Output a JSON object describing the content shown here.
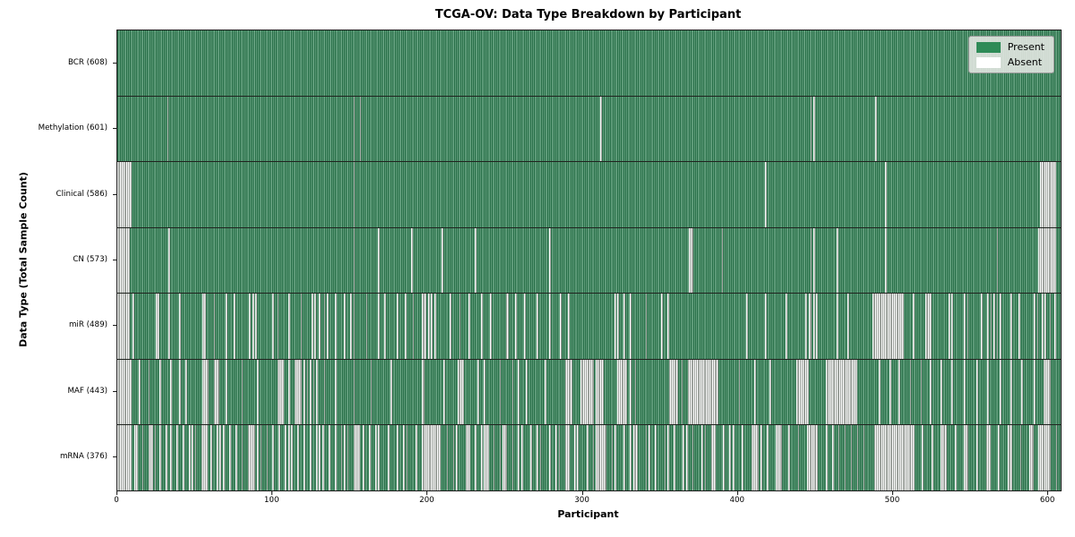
{
  "chart_data": {
    "type": "heatmap",
    "title": "TCGA-OV: Data Type Breakdown by Participant",
    "xlabel": "Participant",
    "ylabel": "Data Type (Total Sample Count)",
    "x_ticks": [
      0,
      100,
      200,
      300,
      400,
      500,
      600
    ],
    "x_range": [
      0,
      608
    ],
    "n_participants": 608,
    "grid": "row-separators",
    "legend_position": "upper-right",
    "legend": [
      {
        "label": "Present",
        "color": "#2e8b57"
      },
      {
        "label": "Absent",
        "color": "#ffffff"
      }
    ],
    "rows": [
      {
        "label": "BCR (608)",
        "present_count": 608,
        "absent_runs": []
      },
      {
        "label": "Methylation (601)",
        "present_count": 601,
        "absent_runs": [
          [
            32,
            1
          ],
          [
            152,
            1
          ],
          [
            156,
            1
          ],
          [
            311,
            1
          ],
          [
            446,
            1
          ],
          [
            448,
            1
          ],
          [
            488,
            1
          ]
        ]
      },
      {
        "label": "Clinical (586)",
        "present_count": 586,
        "absent_runs": [
          [
            0,
            9
          ],
          [
            152,
            1
          ],
          [
            417,
            1
          ],
          [
            494,
            1
          ],
          [
            594,
            10
          ]
        ]
      },
      {
        "label": "CN (573)",
        "present_count": 573,
        "absent_runs": [
          [
            0,
            8
          ],
          [
            33,
            1
          ],
          [
            152,
            1
          ],
          [
            168,
            1
          ],
          [
            189,
            1
          ],
          [
            209,
            1
          ],
          [
            230,
            1
          ],
          [
            278,
            1
          ],
          [
            368,
            3
          ],
          [
            389,
            1
          ],
          [
            446,
            1
          ],
          [
            448,
            1
          ],
          [
            463,
            1
          ],
          [
            494,
            1
          ],
          [
            566,
            1
          ],
          [
            593,
            11
          ]
        ]
      },
      {
        "label": "miR (489)",
        "present_count": 489,
        "absent_runs": [
          [
            0,
            8
          ],
          [
            10,
            1
          ],
          [
            25,
            2
          ],
          [
            33,
            1
          ],
          [
            40,
            1
          ],
          [
            55,
            2
          ],
          [
            62,
            1
          ],
          [
            70,
            1
          ],
          [
            75,
            1
          ],
          [
            85,
            1
          ],
          [
            87,
            1
          ],
          [
            89,
            1
          ],
          [
            100,
            1
          ],
          [
            103,
            1
          ],
          [
            110,
            1
          ],
          [
            118,
            1
          ],
          [
            125,
            1
          ],
          [
            127,
            1
          ],
          [
            130,
            1
          ],
          [
            133,
            1
          ],
          [
            135,
            1
          ],
          [
            140,
            1
          ],
          [
            146,
            1
          ],
          [
            150,
            1
          ],
          [
            152,
            1
          ],
          [
            160,
            1
          ],
          [
            168,
            1
          ],
          [
            172,
            1
          ],
          [
            180,
            1
          ],
          [
            185,
            1
          ],
          [
            190,
            1
          ],
          [
            196,
            3
          ],
          [
            200,
            1
          ],
          [
            202,
            1
          ],
          [
            204,
            1
          ],
          [
            214,
            1
          ],
          [
            220,
            1
          ],
          [
            226,
            1
          ],
          [
            234,
            1
          ],
          [
            240,
            1
          ],
          [
            250,
            2
          ],
          [
            256,
            1
          ],
          [
            262,
            1
          ],
          [
            270,
            1
          ],
          [
            278,
            1
          ],
          [
            285,
            1
          ],
          [
            290,
            1
          ],
          [
            320,
            1
          ],
          [
            322,
            1
          ],
          [
            326,
            1
          ],
          [
            330,
            1
          ],
          [
            340,
            1
          ],
          [
            350,
            1
          ],
          [
            354,
            1
          ],
          [
            405,
            1
          ],
          [
            417,
            1
          ],
          [
            430,
            1
          ],
          [
            443,
            1
          ],
          [
            445,
            2
          ],
          [
            448,
            1
          ],
          [
            450,
            1
          ],
          [
            463,
            1
          ],
          [
            470,
            1
          ],
          [
            486,
            20
          ],
          [
            512,
            1
          ],
          [
            520,
            4
          ],
          [
            535,
            1
          ],
          [
            537,
            1
          ],
          [
            545,
            1
          ],
          [
            547,
            1
          ],
          [
            556,
            1
          ],
          [
            560,
            1
          ],
          [
            562,
            1
          ],
          [
            564,
            1
          ],
          [
            566,
            1
          ],
          [
            568,
            1
          ],
          [
            575,
            1
          ],
          [
            580,
            1
          ],
          [
            590,
            1
          ],
          [
            592,
            1
          ],
          [
            595,
            1
          ],
          [
            597,
            1
          ],
          [
            600,
            1
          ],
          [
            603,
            1
          ]
        ]
      },
      {
        "label": "MAF (443)",
        "present_count": 443,
        "absent_runs": [
          [
            0,
            9
          ],
          [
            14,
            1
          ],
          [
            20,
            1
          ],
          [
            27,
            1
          ],
          [
            34,
            1
          ],
          [
            40,
            1
          ],
          [
            44,
            1
          ],
          [
            55,
            4
          ],
          [
            62,
            4
          ],
          [
            70,
            1
          ],
          [
            80,
            1
          ],
          [
            90,
            1
          ],
          [
            103,
            4
          ],
          [
            110,
            1
          ],
          [
            114,
            5
          ],
          [
            120,
            1
          ],
          [
            122,
            1
          ],
          [
            124,
            1
          ],
          [
            126,
            1
          ],
          [
            128,
            1
          ],
          [
            133,
            1
          ],
          [
            140,
            1
          ],
          [
            152,
            1
          ],
          [
            163,
            1
          ],
          [
            176,
            1
          ],
          [
            196,
            2
          ],
          [
            210,
            1
          ],
          [
            219,
            4
          ],
          [
            232,
            1
          ],
          [
            236,
            1
          ],
          [
            246,
            1
          ],
          [
            254,
            1
          ],
          [
            258,
            1
          ],
          [
            263,
            1
          ],
          [
            275,
            1
          ],
          [
            288,
            5
          ],
          [
            298,
            9
          ],
          [
            308,
            5
          ],
          [
            322,
            6
          ],
          [
            330,
            1
          ],
          [
            333,
            1
          ],
          [
            355,
            6
          ],
          [
            363,
            1
          ],
          [
            367,
            20
          ],
          [
            400,
            1
          ],
          [
            410,
            1
          ],
          [
            420,
            1
          ],
          [
            437,
            8
          ],
          [
            456,
            20
          ],
          [
            490,
            1
          ],
          [
            497,
            1
          ],
          [
            503,
            1
          ],
          [
            510,
            1
          ],
          [
            517,
            1
          ],
          [
            523,
            1
          ],
          [
            530,
            1
          ],
          [
            537,
            1
          ],
          [
            545,
            1
          ],
          [
            553,
            1
          ],
          [
            560,
            1
          ],
          [
            568,
            1
          ],
          [
            575,
            1
          ],
          [
            582,
            1
          ],
          [
            590,
            1
          ],
          [
            596,
            5
          ]
        ]
      },
      {
        "label": "mRNA (376)",
        "present_count": 376,
        "absent_runs": [
          [
            0,
            9
          ],
          [
            11,
            1
          ],
          [
            12,
            1
          ],
          [
            16,
            1
          ],
          [
            20,
            3
          ],
          [
            24,
            1
          ],
          [
            27,
            1
          ],
          [
            31,
            1
          ],
          [
            34,
            1
          ],
          [
            38,
            1
          ],
          [
            42,
            1
          ],
          [
            46,
            1
          ],
          [
            48,
            1
          ],
          [
            50,
            1
          ],
          [
            54,
            4
          ],
          [
            60,
            1
          ],
          [
            64,
            1
          ],
          [
            66,
            1
          ],
          [
            68,
            1
          ],
          [
            72,
            1
          ],
          [
            76,
            1
          ],
          [
            80,
            1
          ],
          [
            84,
            5
          ],
          [
            90,
            1
          ],
          [
            92,
            1
          ],
          [
            96,
            1
          ],
          [
            100,
            1
          ],
          [
            104,
            1
          ],
          [
            108,
            1
          ],
          [
            110,
            1
          ],
          [
            112,
            1
          ],
          [
            116,
            1
          ],
          [
            120,
            1
          ],
          [
            124,
            1
          ],
          [
            128,
            1
          ],
          [
            130,
            1
          ],
          [
            132,
            1
          ],
          [
            136,
            1
          ],
          [
            140,
            1
          ],
          [
            144,
            1
          ],
          [
            146,
            1
          ],
          [
            148,
            1
          ],
          [
            152,
            4
          ],
          [
            158,
            1
          ],
          [
            162,
            1
          ],
          [
            166,
            1
          ],
          [
            168,
            1
          ],
          [
            174,
            1
          ],
          [
            180,
            1
          ],
          [
            184,
            1
          ],
          [
            186,
            1
          ],
          [
            192,
            1
          ],
          [
            196,
            12
          ],
          [
            212,
            1
          ],
          [
            216,
            1
          ],
          [
            218,
            1
          ],
          [
            224,
            3
          ],
          [
            230,
            1
          ],
          [
            234,
            1
          ],
          [
            236,
            3
          ],
          [
            242,
            1
          ],
          [
            246,
            1
          ],
          [
            248,
            3
          ],
          [
            254,
            1
          ],
          [
            258,
            1
          ],
          [
            260,
            1
          ],
          [
            266,
            1
          ],
          [
            270,
            1
          ],
          [
            272,
            1
          ],
          [
            278,
            1
          ],
          [
            282,
            1
          ],
          [
            284,
            1
          ],
          [
            288,
            3
          ],
          [
            294,
            1
          ],
          [
            296,
            1
          ],
          [
            302,
            1
          ],
          [
            306,
            1
          ],
          [
            308,
            7
          ],
          [
            318,
            1
          ],
          [
            320,
            1
          ],
          [
            326,
            1
          ],
          [
            330,
            1
          ],
          [
            332,
            3
          ],
          [
            340,
            1
          ],
          [
            342,
            1
          ],
          [
            346,
            1
          ],
          [
            352,
            1
          ],
          [
            354,
            1
          ],
          [
            358,
            1
          ],
          [
            364,
            1
          ],
          [
            366,
            1
          ],
          [
            370,
            1
          ],
          [
            376,
            1
          ],
          [
            378,
            1
          ],
          [
            382,
            3
          ],
          [
            390,
            1
          ],
          [
            394,
            1
          ],
          [
            396,
            1
          ],
          [
            402,
            1
          ],
          [
            408,
            5
          ],
          [
            414,
            1
          ],
          [
            418,
            1
          ],
          [
            424,
            4
          ],
          [
            432,
            1
          ],
          [
            438,
            1
          ],
          [
            444,
            7
          ],
          [
            456,
            1
          ],
          [
            460,
            1
          ],
          [
            464,
            1
          ],
          [
            468,
            1
          ],
          [
            472,
            1
          ],
          [
            476,
            1
          ],
          [
            480,
            1
          ],
          [
            487,
            26
          ],
          [
            518,
            1
          ],
          [
            524,
            1
          ],
          [
            530,
            4
          ],
          [
            539,
            1
          ],
          [
            545,
            3
          ],
          [
            553,
            1
          ],
          [
            559,
            3
          ],
          [
            567,
            1
          ],
          [
            573,
            3
          ],
          [
            581,
            1
          ],
          [
            587,
            3
          ],
          [
            593,
            8
          ],
          [
            604,
            1
          ]
        ]
      }
    ]
  }
}
